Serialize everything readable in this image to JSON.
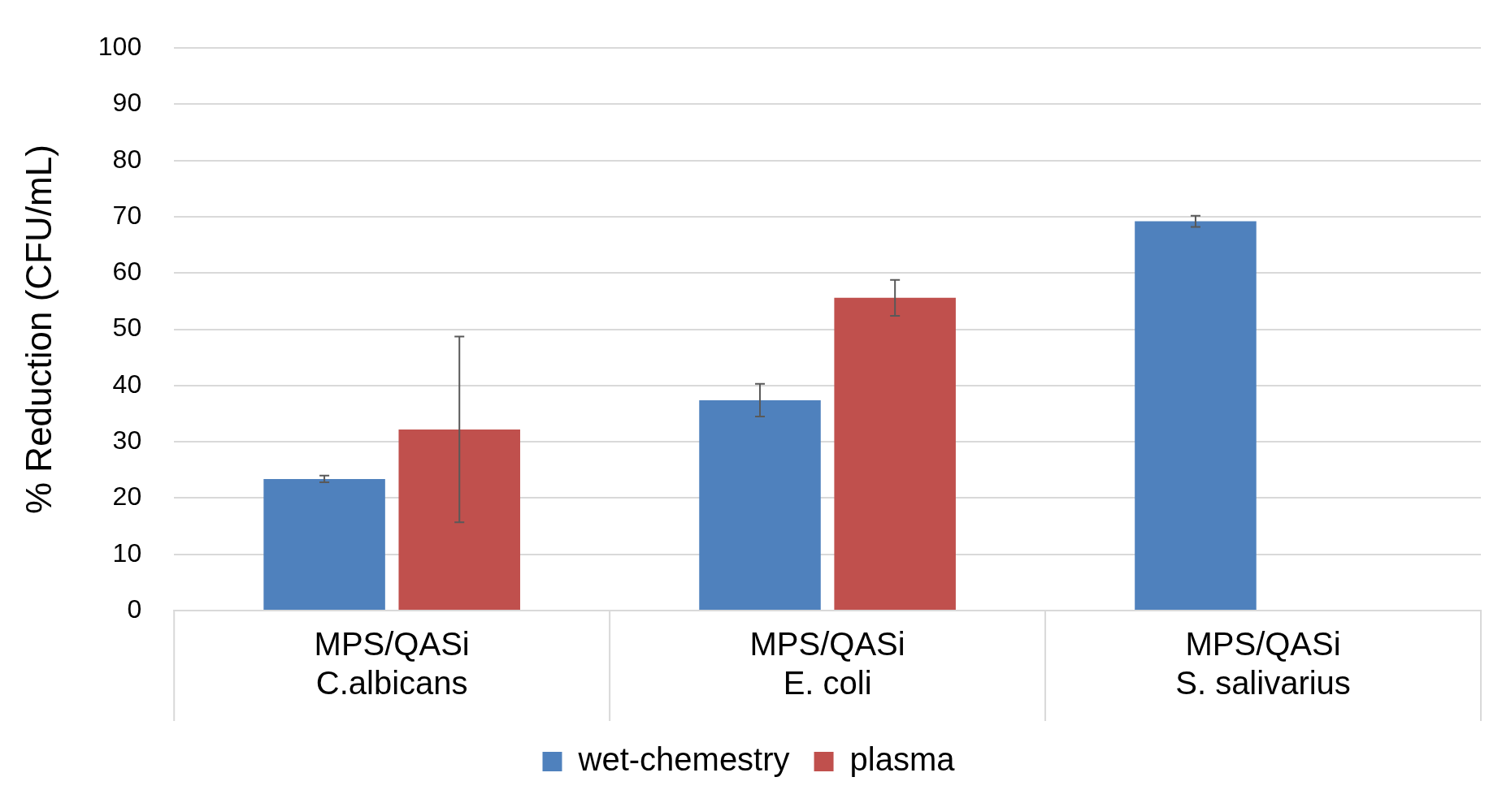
{
  "chart_data": {
    "type": "bar",
    "ylabel": "% Reduction (CFU/mL)",
    "categories": [
      "MPS/QASi\nC.albicans",
      "MPS/QASi\nE. coli",
      "MPS/QASi\nS. salivarius"
    ],
    "series": [
      {
        "name": "wet-chemestry",
        "color": "#4f81bd",
        "values": [
          23.4,
          37.4,
          69.2
        ],
        "errors": [
          0.6,
          2.9,
          1.0
        ]
      },
      {
        "name": "plasma",
        "color": "#c0504d",
        "values": [
          32.2,
          55.6,
          null
        ],
        "errors": [
          16.5,
          3.2,
          null
        ]
      }
    ],
    "ylim": [
      0,
      100
    ],
    "yticks": [
      0,
      10,
      20,
      30,
      40,
      50,
      60,
      70,
      80,
      90,
      100
    ],
    "grid": "y",
    "legend": "bottom"
  }
}
